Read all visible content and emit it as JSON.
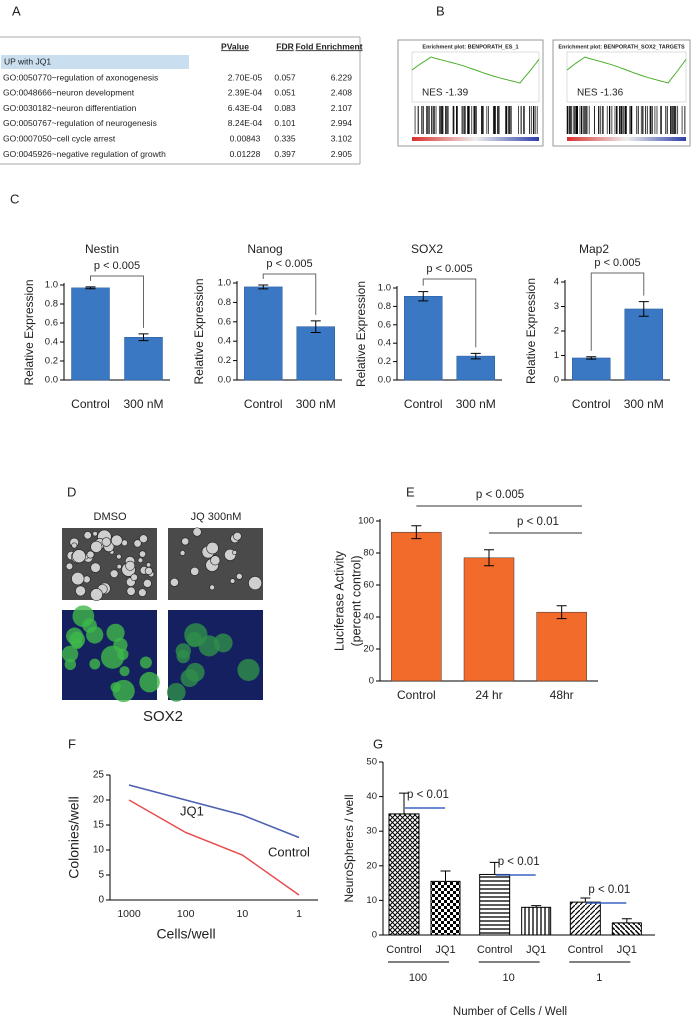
{
  "panels": [
    "A",
    "B",
    "C",
    "D",
    "E",
    "F",
    "G"
  ],
  "table": {
    "header": [
      "PValue",
      "FDR",
      "Fold Enrichment"
    ],
    "caption": "UP with JQ1",
    "rows": [
      [
        "GO:0050770~regulation of axonogenesis",
        "2.70E-05",
        "0.057",
        "6.229"
      ],
      [
        "GO:0048666~neuron development",
        "2.39E-04",
        "0.051",
        "2.408"
      ],
      [
        "GO:0030182~neuron differentiation",
        "6.43E-04",
        "0.083",
        "2.107"
      ],
      [
        "GO:0050767~regulation of neurogenesis",
        "8.24E-04",
        "0.101",
        "2.994"
      ],
      [
        "GO:0007050~cell cycle arrest",
        "0.00843",
        "0.335",
        "3.102"
      ],
      [
        "GO:0045926~negative regulation of growth",
        "0.01228",
        "0.397",
        "2.905"
      ]
    ]
  },
  "gsea": [
    {
      "title": "Enrichment plot: BENPORATH_ES_1",
      "nes": "NES -1.39"
    },
    {
      "title": "Enrichment plot: BENPORATH_SOX2_TARGETS",
      "nes": "NES -1.36"
    }
  ],
  "images": {
    "columns": [
      "DMSO",
      "JQ 300nM"
    ],
    "stain": "SOX2"
  },
  "chart_data": [
    {
      "type": "bar",
      "title": "Nestin",
      "ylabel": "Relative Expression",
      "categories": [
        "Control",
        "300 nM"
      ],
      "values": [
        0.97,
        0.45
      ],
      "errors": [
        0.01,
        0.035
      ],
      "color": "#3b78c4",
      "ylim": [
        0,
        1
      ],
      "yticks": [
        {
          "value": 0,
          "label": "0.0"
        },
        {
          "value": 0.2,
          "label": "0.2"
        },
        {
          "value": 0.4,
          "label": "0.4"
        },
        {
          "value": 0.6,
          "label": "0.6"
        },
        {
          "value": 0.8,
          "label": "0.8"
        },
        {
          "value": 1,
          "label": "1.0"
        }
      ],
      "annotations": [
        "p < 0.005"
      ],
      "grid": false
    },
    {
      "type": "bar",
      "title": "Nanog",
      "ylabel": "Relative Expression",
      "categories": [
        "Control",
        "300 nM"
      ],
      "values": [
        0.96,
        0.55
      ],
      "errors": [
        0.02,
        0.06
      ],
      "color": "#3b78c4",
      "ylim": [
        0,
        1
      ],
      "yticks": [
        {
          "value": 0,
          "label": "0.0"
        },
        {
          "value": 0.2,
          "label": "0.2"
        },
        {
          "value": 0.4,
          "label": "0.4"
        },
        {
          "value": 0.6,
          "label": "0.6"
        },
        {
          "value": 0.8,
          "label": "0.8"
        },
        {
          "value": 1,
          "label": "1.0"
        }
      ],
      "annotations": [
        "p < 0.005"
      ],
      "grid": false
    },
    {
      "type": "bar",
      "title": "SOX2",
      "ylabel": "Relative Expression",
      "categories": [
        "Control",
        "300 nM"
      ],
      "values": [
        0.91,
        0.26
      ],
      "errors": [
        0.05,
        0.03
      ],
      "color": "#3b78c4",
      "ylim": [
        0,
        1
      ],
      "yticks": [
        {
          "value": 0,
          "label": "0.0"
        },
        {
          "value": 0.2,
          "label": "0.2"
        },
        {
          "value": 0.4,
          "label": "0.4"
        },
        {
          "value": 0.6,
          "label": "0.6"
        },
        {
          "value": 0.8,
          "label": "0.8"
        },
        {
          "value": 1,
          "label": "1.0"
        }
      ],
      "annotations": [
        "p < 0.005"
      ],
      "grid": false
    },
    {
      "type": "bar",
      "title": "Map2",
      "ylabel": "Relative Expression",
      "categories": [
        "Control",
        "300 nM"
      ],
      "values": [
        0.9,
        2.9
      ],
      "errors": [
        0.05,
        0.3
      ],
      "color": "#3b78c4",
      "ylim": [
        0,
        4
      ],
      "yticks": [
        0,
        1,
        2,
        3,
        4
      ],
      "annotations": [
        "p < 0.005"
      ],
      "grid": false
    },
    {
      "type": "bar",
      "ylabel": [
        "Luciferase Activity",
        "(percent control)"
      ],
      "categories": [
        "Control",
        "24 hr",
        "48hr"
      ],
      "values": [
        93,
        77,
        43
      ],
      "errors": [
        4,
        5,
        4
      ],
      "color": "#f26b2a",
      "ylim": [
        0,
        100
      ],
      "yticks": [
        0,
        20,
        40,
        60,
        80,
        100
      ],
      "annotations": [
        "p < 0.005",
        "p < 0.01"
      ],
      "grid": false
    },
    {
      "type": "line",
      "xlabel": "Cells/well",
      "ylabel": "Colonies/well",
      "categories": [
        "1000",
        "100",
        "10",
        "1"
      ],
      "series": [
        {
          "name": "Control",
          "color": "#4a5fb0",
          "values": [
            23,
            20,
            17,
            12.5
          ]
        },
        {
          "name": "JQ1",
          "color": "#e84c4c",
          "values": [
            20,
            13.5,
            9,
            1
          ]
        }
      ],
      "ylim": [
        0,
        25
      ],
      "yticks": [
        0,
        5,
        10,
        15,
        20,
        25
      ],
      "grid": false
    },
    {
      "type": "bar",
      "xlabel": "Number of Cells / Well",
      "ylabel": "NeuroSpheres / well",
      "categories": [
        "100",
        "10",
        "1"
      ],
      "series": [
        {
          "name": "Control",
          "color": "#000000",
          "values": [
            35,
            17.5,
            9.5
          ],
          "errors": [
            6,
            3.5,
            1.2
          ]
        },
        {
          "name": "JQ1",
          "color": "#000000",
          "values": [
            15.5,
            8,
            3.5
          ],
          "errors": [
            3,
            0.5,
            1.2
          ]
        }
      ],
      "ylim": [
        0,
        50
      ],
      "yticks": [
        0,
        10,
        20,
        30,
        40,
        50
      ],
      "annotations": [
        "p < 0.01",
        "p < 0.01",
        "p < 0.01"
      ],
      "grid": false
    }
  ]
}
